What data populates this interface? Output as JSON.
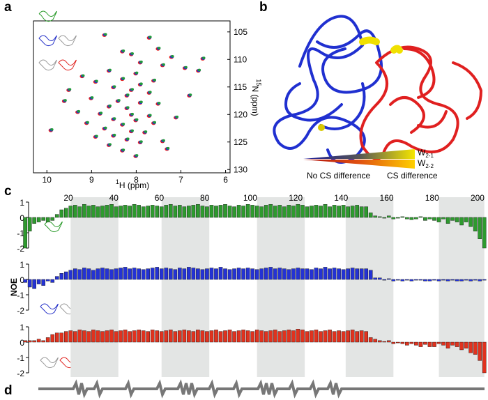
{
  "panel_labels": {
    "a": "a",
    "b": "b",
    "c": "c",
    "d": "d"
  },
  "panel_a": {
    "type": "scatter",
    "xlabel_sup": "1",
    "xlabel": "H (ppm)",
    "ylabel_sup": "15",
    "ylabel": "N (ppm)",
    "xlim": [
      10.3,
      5.9
    ],
    "xticks": [
      10,
      9,
      8,
      7,
      6
    ],
    "ylim": [
      103,
      130.6
    ],
    "yticks": [
      105,
      110,
      115,
      120,
      125,
      130
    ],
    "colors": [
      "#e8231f",
      "#2430c8",
      "#1f9a3a"
    ],
    "x": [
      8.7,
      7.7,
      7.5,
      8.3,
      8.1,
      7.2,
      6.5,
      7.9,
      7.4,
      6.9,
      6.6,
      8.6,
      8.0,
      9.2,
      8.3,
      7.6,
      8.9,
      7.9,
      9.5,
      8.5,
      8.1,
      8.2,
      7.7,
      9.0,
      8.4,
      7.9,
      8.6,
      8.2,
      7.5,
      9.3,
      8.8,
      8.1,
      7.7,
      8.5,
      8.0,
      9.1,
      8.3,
      7.6,
      8.7,
      9.9,
      8.1,
      7.8,
      8.5,
      8.9,
      8.2,
      7.9,
      8.6,
      7.4,
      8.3,
      8.0,
      7.1,
      6.8,
      9.6,
      7.3
    ],
    "y": [
      105.5,
      106,
      108,
      108.5,
      109,
      109.5,
      109.8,
      110.5,
      111,
      111.5,
      112,
      112,
      112.5,
      113,
      113.5,
      113.8,
      114,
      114.5,
      115.5,
      115,
      115.5,
      116.5,
      116,
      117,
      117.5,
      117.8,
      118.5,
      118.8,
      118,
      119.5,
      119.8,
      120,
      120.2,
      120.8,
      121,
      121.5,
      121.8,
      121.5,
      122.5,
      122.8,
      123,
      123.2,
      123.8,
      124,
      124.5,
      125,
      125.5,
      124.8,
      126.5,
      127.5,
      120.5,
      116.5,
      117.5,
      126.2
    ]
  },
  "panel_b": {
    "legend_w1": [
      "W",
      "2-1"
    ],
    "legend_w2": [
      "W",
      "2-2"
    ],
    "legend_left": "No CS difference",
    "legend_right": "CS difference"
  },
  "chart_data": {
    "type": "bar",
    "ylabel": "NOE",
    "xlim": [
      2.5,
      204
    ],
    "xticks": [
      20,
      40,
      60,
      80,
      100,
      120,
      140,
      160,
      180,
      200
    ],
    "ylim": [
      -2,
      1
    ],
    "yticks": [
      1,
      0,
      -1,
      -2
    ],
    "shaded": [
      [
        21,
        42
      ],
      [
        61,
        82
      ],
      [
        103,
        124
      ],
      [
        142,
        163
      ],
      [
        183,
        203
      ]
    ],
    "x": [
      1,
      3,
      5,
      7,
      9,
      11,
      13,
      15,
      17,
      19,
      21,
      23,
      25,
      27,
      29,
      31,
      33,
      35,
      37,
      39,
      41,
      43,
      45,
      47,
      49,
      51,
      53,
      55,
      57,
      59,
      61,
      63,
      65,
      67,
      69,
      71,
      73,
      75,
      77,
      79,
      81,
      83,
      85,
      87,
      89,
      91,
      93,
      95,
      97,
      99,
      101,
      103,
      105,
      107,
      109,
      111,
      113,
      115,
      117,
      119,
      121,
      123,
      125,
      127,
      129,
      131,
      133,
      135,
      137,
      139,
      141,
      143,
      145,
      147,
      149,
      151,
      153,
      155,
      157,
      159,
      161,
      163,
      165,
      167,
      169,
      171,
      173,
      175,
      177,
      179,
      181,
      183,
      185,
      187,
      189,
      191,
      193,
      195,
      197,
      199,
      201,
      203
    ],
    "series": [
      {
        "color": "#2e9a2e",
        "values": [
          -2.0,
          -0.9,
          -0.4,
          -0.3,
          -0.2,
          -0.3,
          -0.2,
          0.2,
          0.5,
          0.6,
          0.75,
          0.8,
          0.7,
          0.85,
          0.75,
          0.8,
          0.7,
          0.75,
          0.8,
          0.85,
          0.7,
          0.75,
          0.8,
          0.75,
          0.85,
          0.8,
          0.7,
          0.75,
          0.8,
          0.75,
          0.7,
          0.8,
          0.85,
          0.75,
          0.8,
          0.7,
          0.75,
          0.8,
          0.85,
          0.75,
          0.7,
          0.8,
          0.75,
          0.8,
          0.85,
          0.75,
          0.7,
          0.8,
          0.75,
          0.85,
          0.8,
          0.75,
          0.7,
          0.8,
          0.85,
          0.75,
          0.8,
          0.7,
          0.8,
          0.75,
          0.85,
          0.8,
          0.7,
          0.75,
          0.8,
          0.75,
          0.85,
          0.7,
          0.8,
          0.75,
          0.8,
          0.7,
          0.75,
          0.8,
          0.7,
          0.7,
          0.3,
          0.1,
          0.05,
          -0.05,
          0.1,
          -0.1,
          -0.05,
          0.05,
          -0.1,
          -0.15,
          -0.1,
          0.05,
          -0.2,
          -0.1,
          -0.2,
          -0.3,
          -0.1,
          -0.4,
          -0.2,
          -0.3,
          -0.5,
          -0.3,
          -0.6,
          -0.9,
          -1.4,
          -2.0
        ]
      },
      {
        "color": "#2432d4",
        "values": [
          -0.2,
          -0.5,
          -0.6,
          -0.3,
          -0.4,
          -0.1,
          -0.2,
          0.2,
          0.4,
          0.5,
          0.6,
          0.7,
          0.65,
          0.75,
          0.7,
          0.6,
          0.7,
          0.75,
          0.7,
          0.65,
          0.7,
          0.75,
          0.8,
          0.7,
          0.75,
          0.7,
          0.65,
          0.7,
          0.75,
          0.8,
          0.7,
          0.75,
          0.7,
          0.65,
          0.75,
          0.7,
          0.8,
          0.75,
          0.7,
          0.65,
          0.7,
          0.75,
          0.7,
          0.8,
          0.7,
          0.65,
          0.7,
          0.75,
          0.7,
          0.75,
          0.7,
          0.65,
          0.7,
          0.75,
          0.8,
          0.7,
          0.75,
          0.7,
          0.65,
          0.7,
          0.75,
          0.7,
          0.7,
          0.65,
          0.75,
          0.7,
          0.8,
          0.7,
          0.75,
          0.7,
          0.65,
          0.7,
          0.75,
          0.7,
          0.7,
          0.7,
          0.6,
          0.1,
          0.1,
          -0.05,
          0.05,
          -0.1,
          -0.05,
          -0.1,
          -0.05,
          -0.1,
          -0.05,
          -0.05,
          -0.1,
          -0.1,
          -0.05,
          -0.1,
          -0.05,
          -0.1,
          -0.05,
          -0.1,
          -0.1,
          -0.05,
          -0.1,
          -0.05,
          -0.1,
          -0.05
        ]
      },
      {
        "color": "#e0321e",
        "values": [
          0.1,
          0.1,
          0.1,
          0.2,
          0.1,
          0.3,
          0.5,
          0.6,
          0.6,
          0.7,
          0.75,
          0.7,
          0.8,
          0.75,
          0.7,
          0.8,
          0.75,
          0.7,
          0.75,
          0.8,
          0.7,
          0.75,
          0.8,
          0.7,
          0.75,
          0.8,
          0.75,
          0.7,
          0.8,
          0.75,
          0.7,
          0.75,
          0.8,
          0.7,
          0.75,
          0.8,
          0.75,
          0.7,
          0.8,
          0.75,
          0.7,
          0.75,
          0.8,
          0.7,
          0.75,
          0.8,
          0.7,
          0.75,
          0.8,
          0.75,
          0.7,
          0.8,
          0.75,
          0.7,
          0.75,
          0.8,
          0.7,
          0.75,
          0.8,
          0.75,
          0.85,
          0.8,
          0.7,
          0.75,
          0.8,
          0.7,
          0.75,
          0.8,
          0.7,
          0.75,
          0.7,
          0.75,
          0.8,
          0.7,
          0.75,
          0.7,
          0.3,
          0.2,
          0.1,
          0.05,
          0.1,
          -0.1,
          -0.05,
          -0.1,
          -0.2,
          -0.1,
          -0.2,
          -0.3,
          -0.15,
          -0.3,
          -0.3,
          -0.1,
          -0.2,
          -0.4,
          -0.2,
          -0.3,
          -0.5,
          -0.4,
          -0.7,
          -0.8,
          -1.2,
          -2.0
        ]
      }
    ]
  }
}
